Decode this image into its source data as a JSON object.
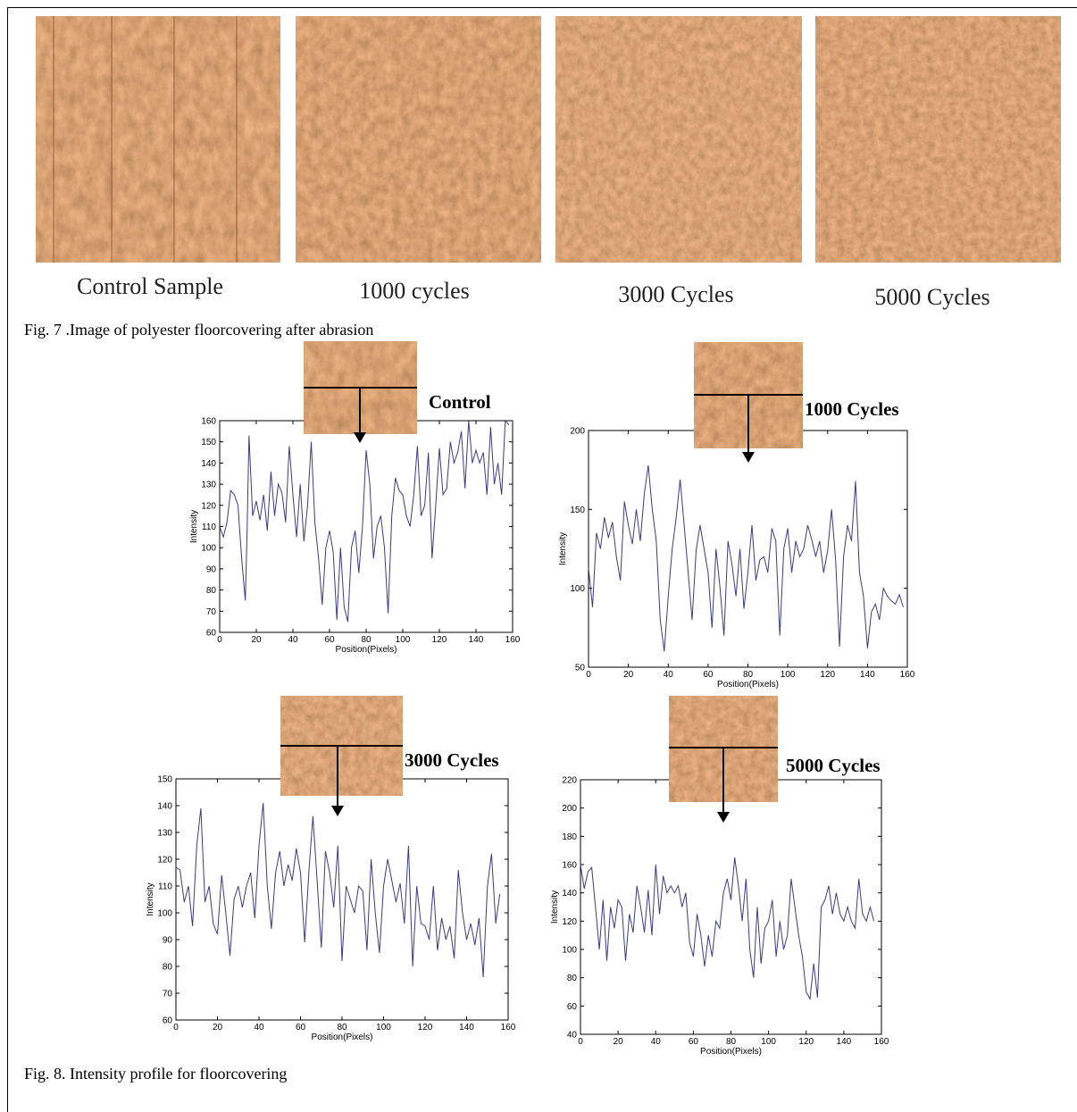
{
  "fig7": {
    "caption": "Fig. 7 .Image of polyester floorcovering after abrasion",
    "samples": [
      {
        "label": "Control Sample"
      },
      {
        "label": "1000 cycles"
      },
      {
        "label": "3000 Cycles"
      },
      {
        "label": "5000 Cycles"
      }
    ]
  },
  "fig8": {
    "caption": "Fig. 8. Intensity profile for floorcovering"
  },
  "colors": {
    "fabric_base": "#b86f3b",
    "fabric_dark": "#7a4220",
    "fabric_light": "#e8b88c",
    "line": "#3a3a8c"
  },
  "chart_data": [
    {
      "type": "line",
      "title": "Control",
      "xlabel": "Position(Pixels)",
      "ylabel": "Intensity",
      "xlim": [
        0,
        160
      ],
      "ylim": [
        60,
        160
      ],
      "xticks": [
        0,
        20,
        40,
        60,
        80,
        100,
        120,
        140,
        160
      ],
      "yticks": [
        60,
        70,
        80,
        90,
        100,
        110,
        120,
        130,
        140,
        150,
        160
      ],
      "grid": false,
      "series": [
        {
          "x": [
            0,
            2,
            4,
            6,
            8,
            10,
            12,
            14,
            15,
            16,
            18,
            20,
            22,
            24,
            26,
            28,
            30,
            32,
            34,
            36,
            38,
            40,
            42,
            44,
            46,
            48,
            50,
            52,
            54,
            56,
            58,
            60,
            62,
            64,
            66,
            68,
            70,
            72,
            74,
            76,
            78,
            80,
            82,
            84,
            86,
            88,
            90,
            92,
            94,
            96,
            98,
            100,
            102,
            104,
            106,
            108,
            110,
            112,
            114,
            116,
            118,
            120,
            122,
            124,
            126,
            128,
            130,
            132,
            134,
            136,
            138,
            140,
            142,
            144,
            146,
            148,
            150,
            152,
            154,
            156,
            158
          ],
          "y": [
            110,
            105,
            112,
            127,
            125,
            120,
            95,
            75,
            110,
            153,
            115,
            122,
            113,
            125,
            108,
            136,
            115,
            130,
            126,
            112,
            148,
            125,
            105,
            130,
            103,
            120,
            150,
            112,
            95,
            73,
            100,
            108,
            98,
            66,
            100,
            72,
            65,
            100,
            108,
            88,
            110,
            146,
            130,
            95,
            110,
            115,
            100,
            69,
            115,
            133,
            127,
            125,
            115,
            110,
            125,
            148,
            115,
            120,
            145,
            95,
            120,
            147,
            125,
            128,
            150,
            140,
            145,
            155,
            128,
            160,
            140,
            146,
            140,
            145,
            125,
            157,
            130,
            140,
            125,
            160,
            158
          ]
        }
      ]
    },
    {
      "type": "line",
      "title": "1000 Cycles",
      "xlabel": "Position(Pixels)",
      "ylabel": "Intensity",
      "xlim": [
        0,
        160
      ],
      "ylim": [
        50,
        200
      ],
      "xticks": [
        0,
        20,
        40,
        60,
        80,
        100,
        120,
        140,
        160
      ],
      "yticks": [
        50,
        100,
        150,
        200
      ],
      "grid": false,
      "series": [
        {
          "x": [
            0,
            2,
            4,
            6,
            8,
            10,
            12,
            14,
            16,
            18,
            20,
            22,
            24,
            26,
            28,
            30,
            32,
            34,
            36,
            38,
            40,
            42,
            44,
            46,
            48,
            50,
            52,
            54,
            56,
            58,
            60,
            62,
            64,
            66,
            68,
            70,
            72,
            74,
            76,
            78,
            80,
            82,
            84,
            86,
            88,
            90,
            92,
            94,
            96,
            98,
            100,
            102,
            104,
            106,
            108,
            110,
            112,
            114,
            116,
            118,
            120,
            122,
            124,
            126,
            128,
            130,
            132,
            134,
            136,
            138,
            140,
            142,
            144,
            146,
            148,
            150,
            152,
            154,
            156,
            158
          ],
          "y": [
            113,
            88,
            135,
            125,
            145,
            132,
            142,
            120,
            105,
            155,
            140,
            128,
            150,
            130,
            160,
            178,
            150,
            130,
            80,
            60,
            95,
            125,
            145,
            169,
            140,
            110,
            80,
            124,
            140,
            125,
            110,
            75,
            125,
            100,
            70,
            130,
            115,
            95,
            125,
            87,
            110,
            140,
            105,
            118,
            120,
            110,
            138,
            130,
            70,
            125,
            138,
            110,
            130,
            120,
            125,
            140,
            131,
            120,
            130,
            110,
            124,
            150,
            118,
            63,
            120,
            140,
            130,
            168,
            110,
            95,
            62,
            85,
            90,
            80,
            100,
            95,
            92,
            90,
            96,
            88
          ]
        }
      ]
    },
    {
      "type": "line",
      "title": "3000 Cycles",
      "xlabel": "Position(Pixels)",
      "ylabel": "Intensity",
      "xlim": [
        0,
        160
      ],
      "ylim": [
        60,
        150
      ],
      "xticks": [
        0,
        20,
        40,
        60,
        80,
        100,
        120,
        140,
        160
      ],
      "yticks": [
        60,
        70,
        80,
        90,
        100,
        110,
        120,
        130,
        140,
        150
      ],
      "grid": false,
      "series": [
        {
          "x": [
            0,
            2,
            4,
            6,
            8,
            10,
            12,
            14,
            16,
            18,
            20,
            22,
            24,
            26,
            28,
            30,
            32,
            34,
            36,
            38,
            40,
            42,
            44,
            46,
            48,
            50,
            52,
            54,
            56,
            58,
            60,
            62,
            64,
            66,
            68,
            70,
            72,
            74,
            76,
            78,
            80,
            82,
            84,
            86,
            88,
            90,
            92,
            94,
            96,
            98,
            100,
            102,
            104,
            106,
            108,
            110,
            112,
            114,
            116,
            118,
            120,
            122,
            124,
            126,
            128,
            130,
            132,
            134,
            136,
            138,
            140,
            142,
            144,
            146,
            148,
            150,
            152,
            154,
            156
          ],
          "y": [
            117,
            116,
            104,
            110,
            95,
            125,
            139,
            104,
            110,
            96,
            92,
            114,
            100,
            84,
            105,
            110,
            102,
            110,
            115,
            98,
            125,
            141,
            110,
            94,
            115,
            123,
            110,
            118,
            112,
            124,
            115,
            89,
            115,
            136,
            112,
            87,
            123,
            115,
            102,
            125,
            82,
            110,
            105,
            100,
            110,
            108,
            86,
            120,
            100,
            85,
            110,
            120,
            112,
            104,
            111,
            96,
            125,
            80,
            110,
            96,
            95,
            90,
            110,
            86,
            98,
            90,
            95,
            83,
            116,
            100,
            90,
            96,
            88,
            98,
            76,
            110,
            122,
            96,
            107
          ]
        }
      ]
    },
    {
      "type": "line",
      "title": "5000 Cycles",
      "xlabel": "Position(Pixels)",
      "ylabel": "Intensity",
      "xlim": [
        0,
        160
      ],
      "ylim": [
        40,
        220
      ],
      "xticks": [
        0,
        20,
        40,
        60,
        80,
        100,
        120,
        140,
        160
      ],
      "yticks": [
        40,
        60,
        80,
        100,
        120,
        140,
        160,
        180,
        200,
        220
      ],
      "grid": false,
      "series": [
        {
          "x": [
            0,
            2,
            4,
            6,
            8,
            10,
            12,
            14,
            16,
            18,
            20,
            22,
            24,
            26,
            28,
            30,
            32,
            34,
            36,
            38,
            40,
            42,
            44,
            46,
            48,
            50,
            52,
            54,
            56,
            58,
            60,
            62,
            64,
            66,
            68,
            70,
            72,
            74,
            76,
            78,
            80,
            82,
            84,
            86,
            88,
            90,
            92,
            94,
            96,
            98,
            100,
            102,
            104,
            106,
            108,
            110,
            112,
            114,
            116,
            118,
            120,
            122,
            124,
            126,
            128,
            130,
            132,
            134,
            136,
            138,
            140,
            142,
            144,
            146,
            148,
            150,
            152,
            154,
            156
          ],
          "y": [
            160,
            143,
            155,
            158,
            130,
            100,
            135,
            92,
            130,
            115,
            135,
            130,
            92,
            125,
            112,
            145,
            130,
            112,
            142,
            110,
            160,
            125,
            152,
            140,
            145,
            140,
            145,
            130,
            140,
            105,
            95,
            125,
            110,
            88,
            110,
            95,
            120,
            115,
            140,
            150,
            135,
            165,
            145,
            120,
            150,
            100,
            80,
            130,
            90,
            115,
            120,
            135,
            95,
            120,
            100,
            110,
            150,
            130,
            110,
            95,
            70,
            65,
            90,
            66,
            130,
            135,
            145,
            125,
            140,
            125,
            120,
            130,
            120,
            115,
            150,
            125,
            120,
            130,
            120
          ]
        }
      ]
    }
  ]
}
